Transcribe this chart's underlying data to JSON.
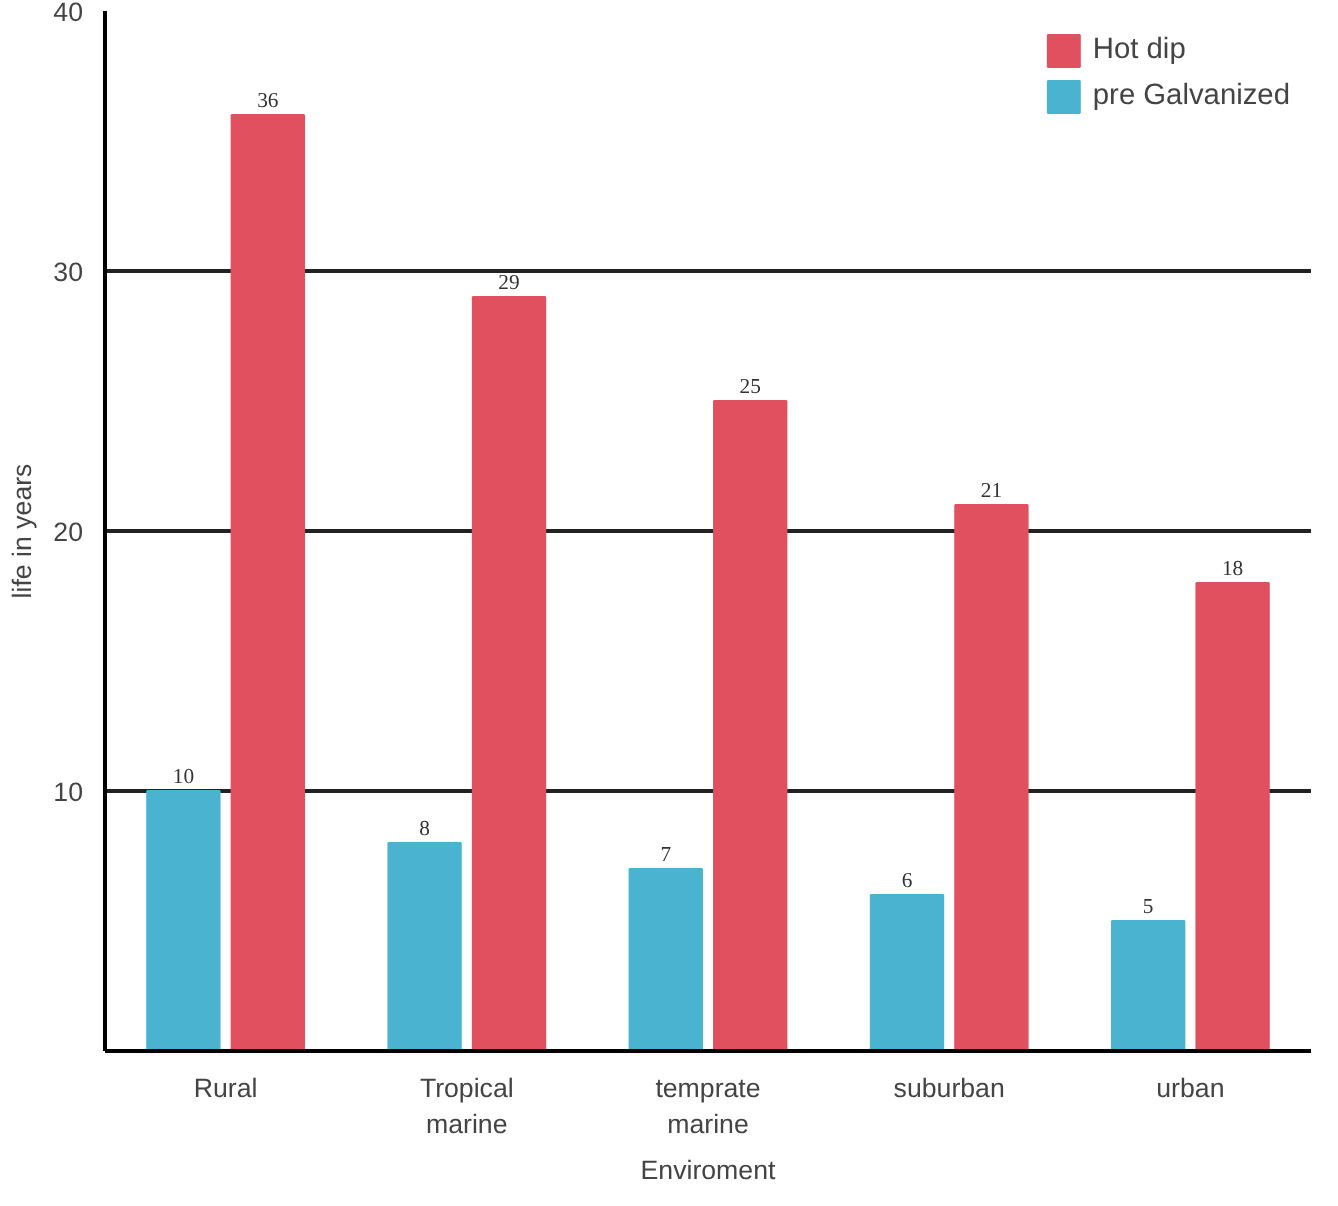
{
  "chart_data": {
    "type": "bar",
    "xlabel": "Enviroment",
    "ylabel": "life in years",
    "categories": [
      "Rural",
      "Tropical\nmarine",
      "temprate\nmarine",
      "suburban",
      "urban"
    ],
    "series": [
      {
        "name": "pre Galvanized",
        "color": "#4ab3d0",
        "values": [
          10,
          8,
          7,
          6,
          5
        ]
      },
      {
        "name": "Hot dip",
        "color": "#e0505f",
        "values": [
          36,
          29,
          25,
          21,
          18
        ]
      }
    ],
    "ylim": [
      0,
      40
    ],
    "yticks": [
      10,
      20,
      30,
      40
    ],
    "grid": "y",
    "legend": "top right",
    "data_labels": true
  }
}
